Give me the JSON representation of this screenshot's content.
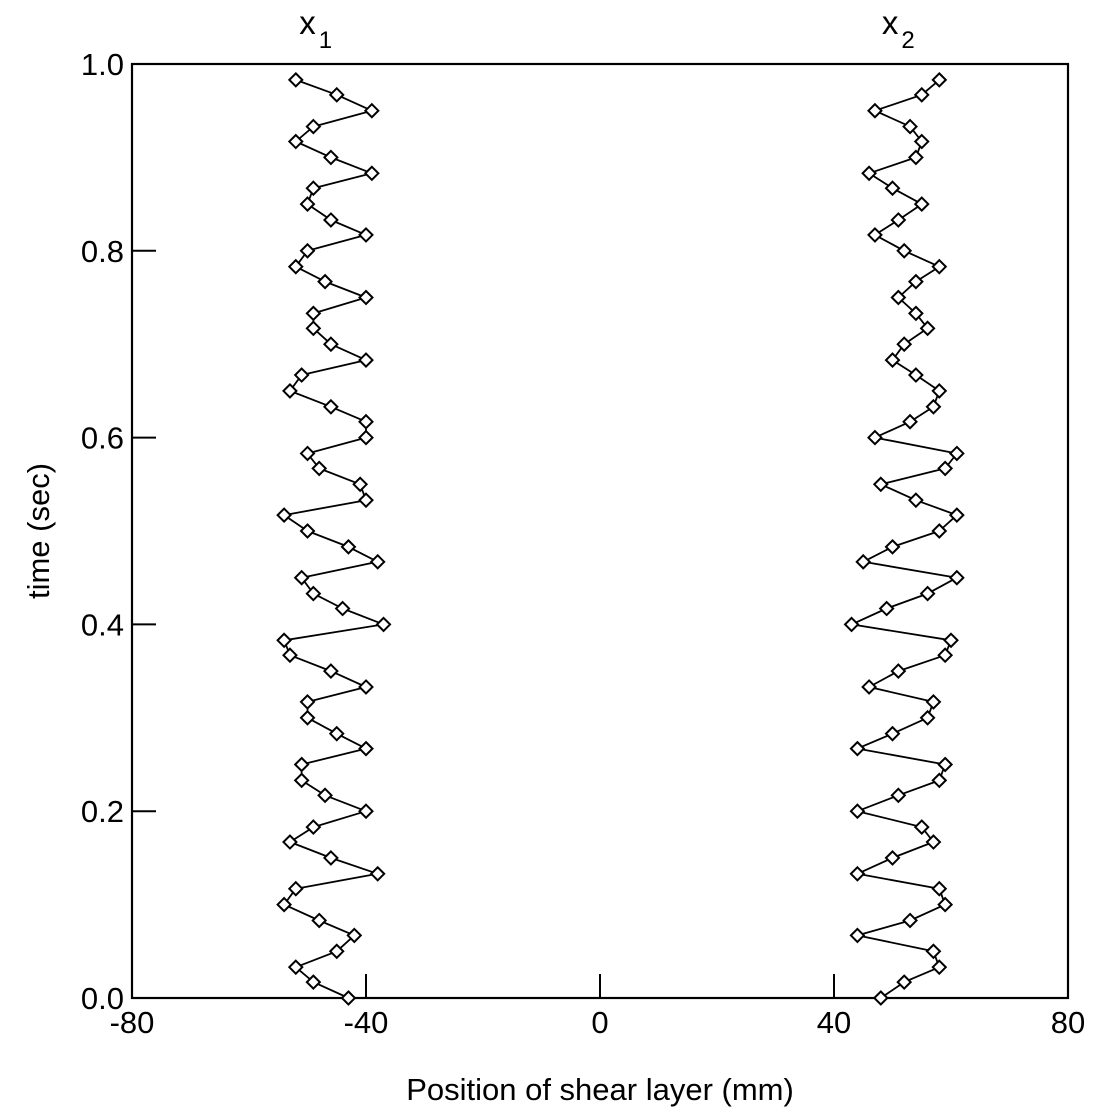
{
  "chart_data": {
    "type": "line",
    "xlabel": "Position of shear layer (mm)",
    "ylabel": "time (sec)",
    "xlim": [
      -80,
      80
    ],
    "ylim": [
      0.0,
      1.0
    ],
    "x_ticks": [
      -80,
      -40,
      0,
      40,
      80
    ],
    "x_tick_labels": [
      "-80",
      "-40",
      "0",
      "40",
      "80"
    ],
    "y_ticks": [
      0.0,
      0.2,
      0.4,
      0.6,
      0.8,
      1.0
    ],
    "y_tick_labels": [
      "0.0",
      "0.2",
      "0.4",
      "0.6",
      "0.8",
      "1.0"
    ],
    "grid": false,
    "series": [
      {
        "name": "x1",
        "label_main": "x",
        "label_sub": "1",
        "marker": "diamond",
        "points": [
          [
            -43,
            0.0
          ],
          [
            -49,
            0.017
          ],
          [
            -52,
            0.033
          ],
          [
            -45,
            0.05
          ],
          [
            -42,
            0.067
          ],
          [
            -48,
            0.083
          ],
          [
            -54,
            0.1
          ],
          [
            -52,
            0.117
          ],
          [
            -38,
            0.133
          ],
          [
            -46,
            0.15
          ],
          [
            -53,
            0.167
          ],
          [
            -49,
            0.183
          ],
          [
            -40,
            0.2
          ],
          [
            -47,
            0.217
          ],
          [
            -51,
            0.233
          ],
          [
            -51,
            0.25
          ],
          [
            -40,
            0.267
          ],
          [
            -45,
            0.283
          ],
          [
            -50,
            0.3
          ],
          [
            -50,
            0.317
          ],
          [
            -40,
            0.333
          ],
          [
            -46,
            0.35
          ],
          [
            -53,
            0.367
          ],
          [
            -54,
            0.383
          ],
          [
            -37,
            0.4
          ],
          [
            -44,
            0.417
          ],
          [
            -49,
            0.433
          ],
          [
            -51,
            0.45
          ],
          [
            -38,
            0.467
          ],
          [
            -43,
            0.483
          ],
          [
            -50,
            0.5
          ],
          [
            -54,
            0.517
          ],
          [
            -40,
            0.533
          ],
          [
            -41,
            0.55
          ],
          [
            -48,
            0.567
          ],
          [
            -50,
            0.583
          ],
          [
            -40,
            0.6
          ],
          [
            -40,
            0.617
          ],
          [
            -46,
            0.633
          ],
          [
            -53,
            0.65
          ],
          [
            -51,
            0.667
          ],
          [
            -40,
            0.683
          ],
          [
            -46,
            0.7
          ],
          [
            -49,
            0.717
          ],
          [
            -49,
            0.733
          ],
          [
            -40,
            0.75
          ],
          [
            -47,
            0.767
          ],
          [
            -52,
            0.783
          ],
          [
            -50,
            0.8
          ],
          [
            -40,
            0.817
          ],
          [
            -46,
            0.833
          ],
          [
            -50,
            0.85
          ],
          [
            -49,
            0.867
          ],
          [
            -39,
            0.883
          ],
          [
            -46,
            0.9
          ],
          [
            -52,
            0.917
          ],
          [
            -49,
            0.933
          ],
          [
            -39,
            0.95
          ],
          [
            -45,
            0.967
          ],
          [
            -52,
            0.983
          ]
        ]
      },
      {
        "name": "x2",
        "label_main": "x",
        "label_sub": "2",
        "marker": "diamond",
        "points": [
          [
            48,
            0.0
          ],
          [
            52,
            0.017
          ],
          [
            58,
            0.033
          ],
          [
            57,
            0.05
          ],
          [
            44,
            0.067
          ],
          [
            53,
            0.083
          ],
          [
            59,
            0.1
          ],
          [
            58,
            0.117
          ],
          [
            44,
            0.133
          ],
          [
            50,
            0.15
          ],
          [
            57,
            0.167
          ],
          [
            55,
            0.183
          ],
          [
            44,
            0.2
          ],
          [
            51,
            0.217
          ],
          [
            58,
            0.233
          ],
          [
            59,
            0.25
          ],
          [
            44,
            0.267
          ],
          [
            50,
            0.283
          ],
          [
            56,
            0.3
          ],
          [
            57,
            0.317
          ],
          [
            46,
            0.333
          ],
          [
            51,
            0.35
          ],
          [
            59,
            0.367
          ],
          [
            60,
            0.383
          ],
          [
            43,
            0.4
          ],
          [
            49,
            0.417
          ],
          [
            56,
            0.433
          ],
          [
            61,
            0.45
          ],
          [
            45,
            0.467
          ],
          [
            50,
            0.483
          ],
          [
            58,
            0.5
          ],
          [
            61,
            0.517
          ],
          [
            54,
            0.533
          ],
          [
            48,
            0.55
          ],
          [
            59,
            0.567
          ],
          [
            61,
            0.583
          ],
          [
            47,
            0.6
          ],
          [
            53,
            0.617
          ],
          [
            57,
            0.633
          ],
          [
            58,
            0.65
          ],
          [
            54,
            0.667
          ],
          [
            50,
            0.683
          ],
          [
            52,
            0.7
          ],
          [
            56,
            0.717
          ],
          [
            54,
            0.733
          ],
          [
            51,
            0.75
          ],
          [
            54,
            0.767
          ],
          [
            58,
            0.783
          ],
          [
            52,
            0.8
          ],
          [
            47,
            0.817
          ],
          [
            51,
            0.833
          ],
          [
            55,
            0.85
          ],
          [
            50,
            0.867
          ],
          [
            46,
            0.883
          ],
          [
            54,
            0.9
          ],
          [
            55,
            0.917
          ],
          [
            53,
            0.933
          ],
          [
            47,
            0.95
          ],
          [
            55,
            0.967
          ],
          [
            58,
            0.983
          ]
        ]
      }
    ]
  }
}
